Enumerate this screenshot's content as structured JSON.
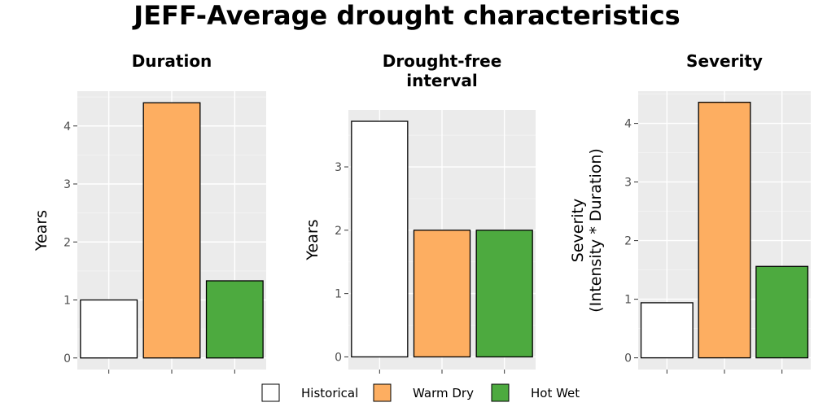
{
  "title": "JEFF-Average drought characteristics",
  "legend": {
    "items": [
      {
        "label": "Historical",
        "color": "#ffffff"
      },
      {
        "label": "Warm Dry",
        "color": "#fdae61"
      },
      {
        "label": "Hot Wet",
        "color": "#4daa3f"
      }
    ]
  },
  "chart_data": [
    {
      "type": "bar",
      "title": "Duration",
      "ylabel": "Years",
      "categories": [
        "Historical",
        "Warm Dry",
        "Hot Wet"
      ],
      "values": [
        1.0,
        4.4,
        1.33
      ],
      "ylim": [
        -0.2,
        4.6
      ],
      "yticks": [
        0,
        1,
        2,
        3,
        4
      ],
      "grid": true
    },
    {
      "type": "bar",
      "title": "Drought-free\ninterval",
      "ylabel": "Years",
      "categories": [
        "Historical",
        "Warm Dry",
        "Hot Wet"
      ],
      "values": [
        3.72,
        2.0,
        2.0
      ],
      "ylim": [
        -0.2,
        3.9
      ],
      "yticks": [
        0,
        1,
        2,
        3
      ],
      "grid": true
    },
    {
      "type": "bar",
      "title": "Severity",
      "ylabel": "Severity\n(Intensity * Duration)",
      "categories": [
        "Historical",
        "Warm Dry",
        "Hot Wet"
      ],
      "values": [
        0.94,
        4.36,
        1.56
      ],
      "ylim": [
        -0.2,
        4.55
      ],
      "yticks": [
        0,
        1,
        2,
        3,
        4
      ],
      "grid": true
    }
  ]
}
